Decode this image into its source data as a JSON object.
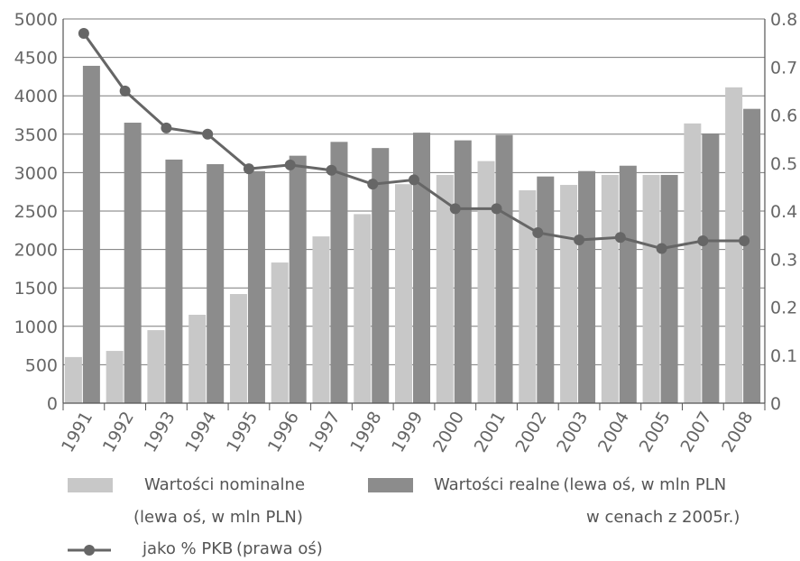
{
  "chart_data": {
    "type": "bar",
    "categories": [
      "1991",
      "1992",
      "1993",
      "1994",
      "1995",
      "1996",
      "1997",
      "1998",
      "1999",
      "2000",
      "2001",
      "2002",
      "2003",
      "2004",
      "2005",
      "2007",
      "2008"
    ],
    "series": [
      {
        "name": "Wartości nominalne (lewa oś, w mln PLN)",
        "type": "bar",
        "axis": "left",
        "color": "#c8c8c8",
        "values": [
          600,
          680,
          950,
          1150,
          1420,
          1830,
          2170,
          2460,
          2850,
          2970,
          3150,
          2770,
          2840,
          2970,
          2970,
          3640,
          4110
        ]
      },
      {
        "name": "Wartości realne (lewa oś, w mln PLN w cenach z 2005r.)",
        "type": "bar",
        "axis": "left",
        "color": "#8c8c8c",
        "values": [
          4390,
          3650,
          3170,
          3110,
          3020,
          3220,
          3400,
          3320,
          3520,
          3420,
          3490,
          2950,
          3020,
          3090,
          2970,
          3510,
          3830
        ]
      },
      {
        "name": "jako % PKB (prawa oś)",
        "type": "line",
        "axis": "right",
        "color": "#666666",
        "values": [
          0.77,
          0.65,
          0.573,
          0.56,
          0.488,
          0.496,
          0.485,
          0.456,
          0.465,
          0.405,
          0.405,
          0.355,
          0.34,
          0.345,
          0.322,
          0.338,
          0.338
        ]
      }
    ],
    "y_left": {
      "min": 0,
      "max": 5000,
      "ticks": [
        "0",
        "500",
        "1000",
        "1500",
        "2000",
        "2500",
        "3000",
        "3500",
        "4000",
        "4500",
        "5000"
      ]
    },
    "y_right": {
      "min": 0,
      "max": 0.8,
      "ticks": [
        "0",
        "0.1",
        "0.2",
        "0.3",
        "0.4",
        "0.5",
        "0.6",
        "0.7",
        "0.8"
      ]
    },
    "grid": "horizontal",
    "legend_position": "bottom"
  },
  "legend": {
    "nominal_line1": "Wartości nominalne",
    "nominal_line2": "(lewa oś, w mln PLN)",
    "real_line1": "Wartości realne (lewa oś, w mln PLN",
    "real_line2": "w cenach z 2005r.)",
    "pkb": "jako % PKB (prawa oś)"
  }
}
